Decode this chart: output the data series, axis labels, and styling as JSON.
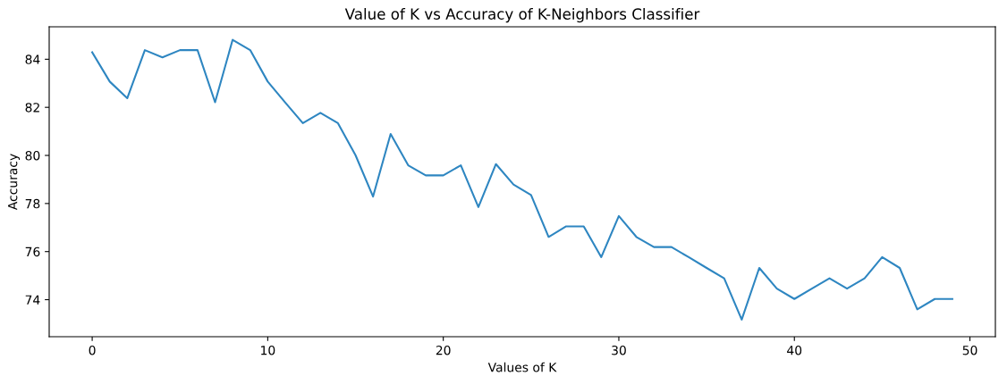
{
  "chart_data": {
    "type": "line",
    "title": "Value of K vs Accuracy of K-Neighbors Classifier",
    "xlabel": "Values of K",
    "ylabel": "Accuracy",
    "x": [
      0,
      1,
      2,
      3,
      4,
      5,
      6,
      7,
      8,
      9,
      10,
      11,
      12,
      13,
      14,
      15,
      16,
      17,
      18,
      19,
      20,
      21,
      22,
      23,
      24,
      25,
      26,
      27,
      28,
      29,
      30,
      31,
      32,
      33,
      34,
      35,
      36,
      37,
      38,
      39,
      40,
      41,
      42,
      43,
      44,
      45,
      46,
      47,
      48,
      49
    ],
    "series": [
      {
        "color": "#2e86c1",
        "values": [
          84.29,
          83.07,
          82.38,
          84.38,
          84.08,
          84.38,
          84.38,
          82.21,
          84.81,
          84.38,
          83.07,
          82.2,
          81.34,
          81.77,
          81.34,
          80.01,
          78.29,
          80.89,
          79.59,
          79.17,
          79.17,
          79.59,
          77.85,
          79.64,
          78.79,
          78.35,
          76.61,
          77.05,
          77.05,
          75.77,
          77.48,
          76.61,
          76.19,
          76.19,
          75.76,
          75.32,
          74.89,
          73.17,
          75.32,
          74.46,
          74.03,
          74.46,
          74.89,
          74.46,
          74.89,
          75.77,
          75.32,
          73.6,
          74.03,
          74.03
        ]
      }
    ],
    "xlim": [
      -2.45,
      51.45
    ],
    "ylim": [
      72.46,
      85.35
    ],
    "xticks": [
      0,
      10,
      20,
      30,
      40,
      50
    ],
    "yticks": [
      74,
      76,
      78,
      80,
      82,
      84
    ],
    "grid": false,
    "legend": false
  }
}
